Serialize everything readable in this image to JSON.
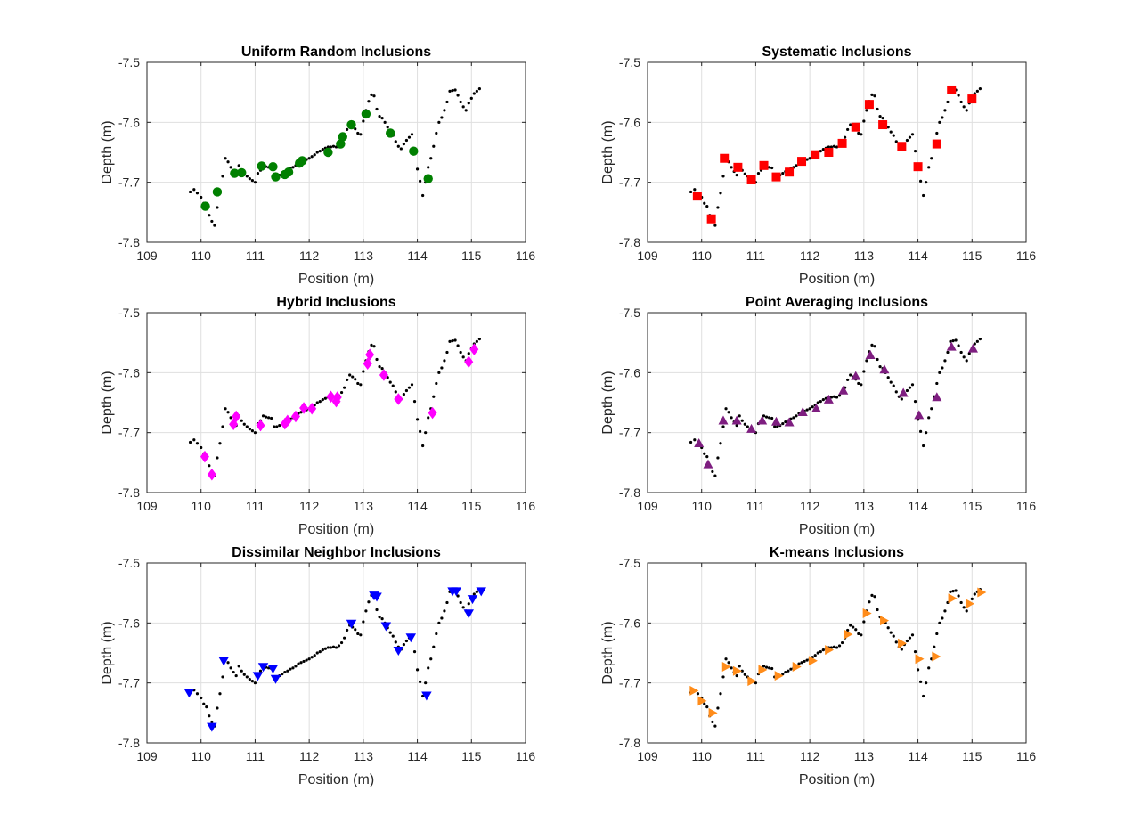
{
  "chart_data": [
    {
      "type": "scatter",
      "title": "Uniform Random Inclusions",
      "xlabel": "Position (m)",
      "ylabel": "Depth (m)",
      "xlim": [
        109,
        116
      ],
      "ylim": [
        -7.8,
        -7.5
      ],
      "xticks": [
        "109",
        "110",
        "111",
        "112",
        "113",
        "114",
        "115",
        "116"
      ],
      "yticks": [
        "-7.5",
        "-7.6",
        "-7.7",
        "-7.8"
      ],
      "grid": true,
      "marker": "circle",
      "color": "#008000",
      "x": [
        110.08,
        110.3,
        110.62,
        110.75,
        111.12,
        111.33,
        111.38,
        111.55,
        111.62,
        111.82,
        111.87,
        112.35,
        112.58,
        112.62,
        112.78,
        113.05,
        113.5,
        113.93,
        114.2
      ],
      "y": [
        -7.74,
        -7.716,
        -7.685,
        -7.684,
        -7.673,
        -7.674,
        -7.691,
        -7.687,
        -7.683,
        -7.668,
        -7.664,
        -7.65,
        -7.636,
        -7.624,
        -7.604,
        -7.586,
        -7.618,
        -7.648,
        -7.694
      ]
    },
    {
      "type": "scatter",
      "title": "Systematic Inclusions",
      "xlabel": "Position (m)",
      "ylabel": "Depth (m)",
      "xlim": [
        109,
        116
      ],
      "ylim": [
        -7.8,
        -7.5
      ],
      "xticks": [
        "109",
        "110",
        "111",
        "112",
        "113",
        "114",
        "115",
        "116"
      ],
      "yticks": [
        "-7.5",
        "-7.6",
        "-7.7",
        "-7.8"
      ],
      "grid": true,
      "marker": "square",
      "color": "#ff0000",
      "x": [
        109.92,
        110.18,
        110.42,
        110.67,
        110.92,
        111.15,
        111.38,
        111.62,
        111.85,
        112.1,
        112.35,
        112.6,
        112.85,
        113.1,
        113.35,
        113.7,
        114.0,
        114.35,
        114.62,
        115.0
      ],
      "y": [
        -7.723,
        -7.761,
        -7.66,
        -7.675,
        -7.696,
        -7.672,
        -7.691,
        -7.683,
        -7.665,
        -7.654,
        -7.65,
        -7.635,
        -7.608,
        -7.57,
        -7.604,
        -7.64,
        -7.674,
        -7.636,
        -7.546,
        -7.561
      ]
    },
    {
      "type": "scatter",
      "title": "Hybrid Inclusions",
      "xlabel": "Position (m)",
      "ylabel": "Depth (m)",
      "xlim": [
        109,
        116
      ],
      "ylim": [
        -7.8,
        -7.5
      ],
      "xticks": [
        "109",
        "110",
        "111",
        "112",
        "113",
        "114",
        "115",
        "116"
      ],
      "yticks": [
        "-7.5",
        "-7.6",
        "-7.7",
        "-7.8"
      ],
      "grid": true,
      "marker": "diamond",
      "color": "#ff00ff",
      "x": [
        110.07,
        110.2,
        110.6,
        110.65,
        111.1,
        111.55,
        111.6,
        111.75,
        111.9,
        112.05,
        112.4,
        112.5,
        112.52,
        113.08,
        113.12,
        113.38,
        113.65,
        114.28,
        114.95,
        115.05
      ],
      "y": [
        -7.74,
        -7.77,
        -7.686,
        -7.673,
        -7.688,
        -7.685,
        -7.68,
        -7.673,
        -7.659,
        -7.66,
        -7.64,
        -7.648,
        -7.641,
        -7.585,
        -7.57,
        -7.604,
        -7.644,
        -7.667,
        -7.582,
        -7.561
      ]
    },
    {
      "type": "scatter",
      "title": "Point Averaging Inclusions",
      "xlabel": "Position (m)",
      "ylabel": "Depth (m)",
      "xlim": [
        109,
        116
      ],
      "ylim": [
        -7.8,
        -7.5
      ],
      "xticks": [
        "109",
        "110",
        "111",
        "112",
        "113",
        "114",
        "115",
        "116"
      ],
      "yticks": [
        "-7.5",
        "-7.6",
        "-7.7",
        "-7.8"
      ],
      "grid": true,
      "marker": "triangle-up",
      "color": "#7e1e80",
      "x": [
        109.95,
        110.12,
        110.4,
        110.65,
        110.92,
        111.12,
        111.38,
        111.62,
        111.87,
        112.12,
        112.35,
        112.62,
        112.85,
        113.12,
        113.38,
        113.73,
        114.02,
        114.35,
        114.62,
        115.02
      ],
      "y": [
        -7.718,
        -7.753,
        -7.68,
        -7.68,
        -7.694,
        -7.68,
        -7.682,
        -7.683,
        -7.666,
        -7.66,
        -7.645,
        -7.63,
        -7.606,
        -7.571,
        -7.595,
        -7.634,
        -7.671,
        -7.641,
        -7.557,
        -7.56
      ]
    },
    {
      "type": "scatter",
      "title": "Dissimilar Neighbor Inclusions",
      "xlabel": "Position (m)",
      "ylabel": "Depth (m)",
      "xlim": [
        109,
        116
      ],
      "ylim": [
        -7.8,
        -7.5
      ],
      "xticks": [
        "109",
        "110",
        "111",
        "112",
        "113",
        "114",
        "115",
        "116"
      ],
      "yticks": [
        "-7.5",
        "-7.6",
        "-7.7",
        "-7.8"
      ],
      "grid": true,
      "marker": "triangle-down",
      "color": "#0000ff",
      "x": [
        109.78,
        110.2,
        110.42,
        111.05,
        111.15,
        111.33,
        111.38,
        112.78,
        113.2,
        113.25,
        113.42,
        113.65,
        113.88,
        114.17,
        114.65,
        114.72,
        114.95,
        115.02,
        115.18
      ],
      "y": [
        -7.716,
        -7.773,
        -7.663,
        -7.688,
        -7.673,
        -7.676,
        -7.693,
        -7.601,
        -7.554,
        -7.556,
        -7.605,
        -7.646,
        -7.624,
        -7.721,
        -7.547,
        -7.547,
        -7.584,
        -7.56,
        -7.547
      ]
    },
    {
      "type": "scatter",
      "title": "K-means Inclusions",
      "xlabel": "Position (m)",
      "ylabel": "Depth (m)",
      "xlim": [
        109,
        116
      ],
      "ylim": [
        -7.8,
        -7.5
      ],
      "xticks": [
        "109",
        "110",
        "111",
        "112",
        "113",
        "114",
        "115",
        "116"
      ],
      "yticks": [
        "-7.5",
        "-7.6",
        "-7.7",
        "-7.8"
      ],
      "grid": true,
      "marker": "triangle-right",
      "color": "#ff8c1a",
      "x": [
        109.85,
        110.0,
        110.2,
        110.45,
        110.65,
        110.92,
        111.12,
        111.42,
        111.75,
        112.05,
        112.35,
        112.7,
        113.05,
        113.37,
        113.7,
        114.02,
        114.33,
        114.63,
        114.95,
        115.17
      ],
      "y": [
        -7.713,
        -7.73,
        -7.75,
        -7.673,
        -7.68,
        -7.697,
        -7.678,
        -7.688,
        -7.673,
        -7.663,
        -7.645,
        -7.619,
        -7.584,
        -7.596,
        -7.634,
        -7.66,
        -7.656,
        -7.559,
        -7.568,
        -7.549
      ]
    }
  ],
  "background_profile": {
    "color": "#000000",
    "x": [
      109.8,
      109.87,
      109.93,
      110.0,
      110.05,
      110.1,
      110.15,
      110.2,
      110.25,
      110.3,
      110.35,
      110.4,
      110.45,
      110.5,
      110.55,
      110.6,
      110.65,
      110.7,
      110.75,
      110.8,
      110.85,
      110.9,
      110.95,
      111.0,
      111.05,
      111.1,
      111.15,
      111.2,
      111.25,
      111.3,
      111.35,
      111.4,
      111.45,
      111.5,
      111.55,
      111.6,
      111.65,
      111.7,
      111.75,
      111.8,
      111.85,
      111.9,
      111.95,
      112.0,
      112.05,
      112.1,
      112.15,
      112.2,
      112.25,
      112.3,
      112.35,
      112.4,
      112.45,
      112.5,
      112.55,
      112.6,
      112.65,
      112.7,
      112.75,
      112.8,
      112.85,
      112.9,
      112.95,
      113.0,
      113.05,
      113.1,
      113.15,
      113.2,
      113.25,
      113.3,
      113.35,
      113.4,
      113.45,
      113.5,
      113.55,
      113.6,
      113.65,
      113.7,
      113.75,
      113.8,
      113.85,
      113.9,
      113.95,
      114.0,
      114.05,
      114.1,
      114.15,
      114.2,
      114.25,
      114.3,
      114.35,
      114.4,
      114.45,
      114.5,
      114.55,
      114.6,
      114.65,
      114.7,
      114.75,
      114.8,
      114.85,
      114.9,
      114.95,
      115.0,
      115.05,
      115.1,
      115.15
    ],
    "y": [
      -7.716,
      -7.712,
      -7.718,
      -7.725,
      -7.735,
      -7.74,
      -7.755,
      -7.765,
      -7.772,
      -7.742,
      -7.718,
      -7.69,
      -7.66,
      -7.666,
      -7.675,
      -7.682,
      -7.688,
      -7.672,
      -7.68,
      -7.686,
      -7.69,
      -7.694,
      -7.697,
      -7.7,
      -7.685,
      -7.68,
      -7.672,
      -7.674,
      -7.675,
      -7.676,
      -7.69,
      -7.69,
      -7.688,
      -7.685,
      -7.682,
      -7.68,
      -7.677,
      -7.675,
      -7.672,
      -7.668,
      -7.666,
      -7.664,
      -7.662,
      -7.66,
      -7.657,
      -7.654,
      -7.65,
      -7.648,
      -7.645,
      -7.643,
      -7.641,
      -7.641,
      -7.64,
      -7.641,
      -7.638,
      -7.633,
      -7.625,
      -7.612,
      -7.604,
      -7.607,
      -7.611,
      -7.618,
      -7.62,
      -7.598,
      -7.58,
      -7.565,
      -7.554,
      -7.556,
      -7.578,
      -7.59,
      -7.593,
      -7.6,
      -7.608,
      -7.616,
      -7.622,
      -7.632,
      -7.64,
      -7.644,
      -7.636,
      -7.63,
      -7.625,
      -7.62,
      -7.648,
      -7.678,
      -7.698,
      -7.722,
      -7.7,
      -7.675,
      -7.66,
      -7.64,
      -7.618,
      -7.6,
      -7.592,
      -7.58,
      -7.566,
      -7.548,
      -7.547,
      -7.546,
      -7.555,
      -7.566,
      -7.574,
      -7.58,
      -7.568,
      -7.56,
      -7.552,
      -7.548,
      -7.544
    ]
  }
}
